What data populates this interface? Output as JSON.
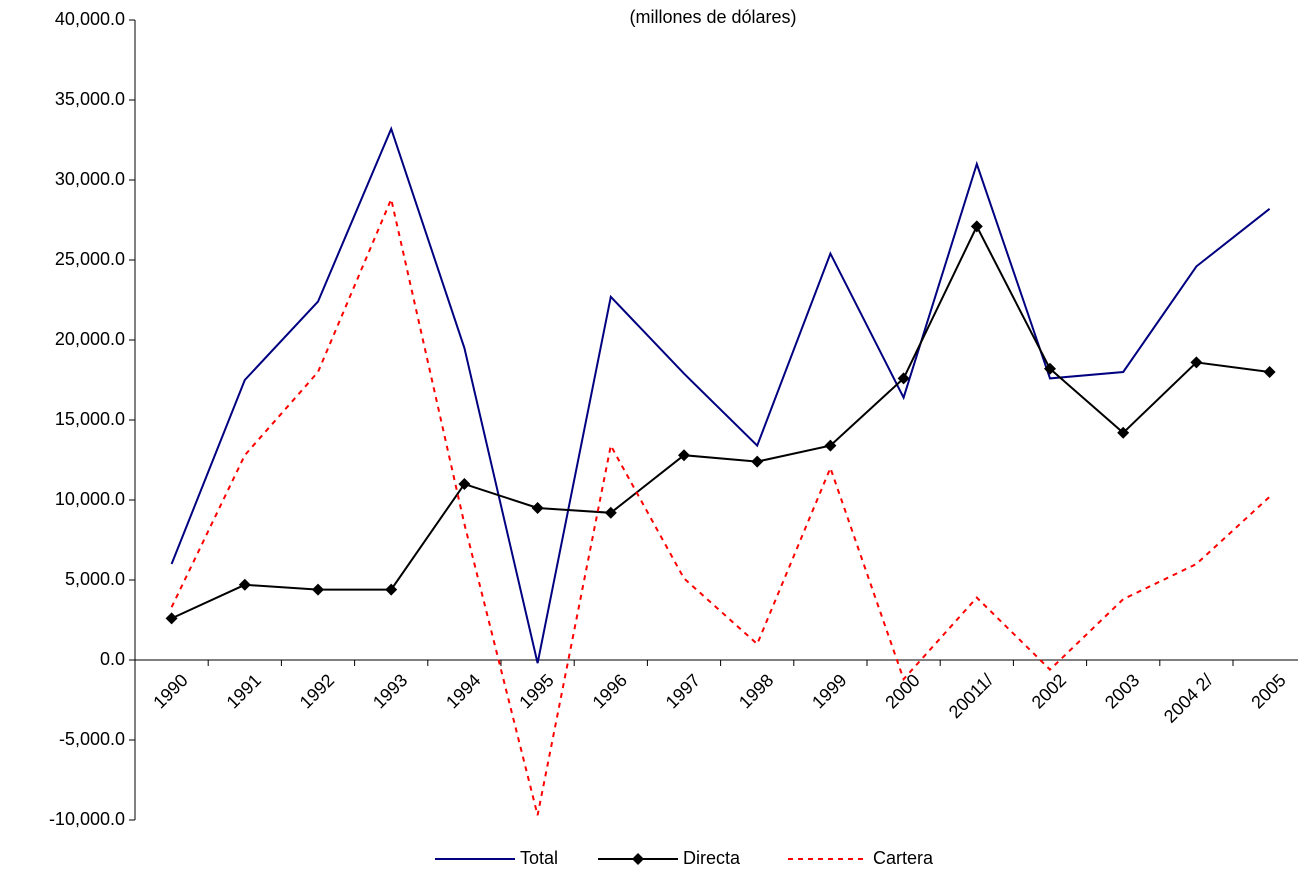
{
  "chart_data": {
    "type": "line",
    "title": "(millones de dólares)",
    "categories": [
      "1990",
      "1991",
      "1992",
      "1993",
      "1994",
      "1995",
      "1996",
      "1997",
      "1998",
      "1999",
      "2000",
      "20011/",
      "2002",
      "2003",
      "2004 2/",
      "2005"
    ],
    "series": [
      {
        "name": "Total",
        "color": "#000080",
        "dash": false,
        "marker": false,
        "values": [
          6000,
          17500,
          22400,
          33200,
          19500,
          -200,
          22700,
          17900,
          13400,
          25400,
          16400,
          31000,
          17600,
          18000,
          24600,
          28200
        ]
      },
      {
        "name": "Directa",
        "color": "#000000",
        "dash": false,
        "marker": true,
        "values": [
          2600,
          4700,
          4400,
          4400,
          11000,
          9500,
          9200,
          12800,
          12400,
          13400,
          17600,
          27100,
          18200,
          14200,
          18600,
          18000
        ]
      },
      {
        "name": "Cartera",
        "color": "#ff0000",
        "dash": true,
        "marker": false,
        "values": [
          3300,
          12800,
          18000,
          28800,
          8500,
          -9700,
          13400,
          5100,
          1000,
          12000,
          -1200,
          3900,
          -600,
          3800,
          6000,
          10200
        ]
      }
    ],
    "ylim": [
      -10000,
      40000
    ],
    "yticks": [
      {
        "value": -10000,
        "label": "-10,000.0"
      },
      {
        "value": -5000,
        "label": "-5,000.0"
      },
      {
        "value": 0,
        "label": "0.0"
      },
      {
        "value": 5000,
        "label": "5,000.0"
      },
      {
        "value": 10000,
        "label": "10,000.0"
      },
      {
        "value": 15000,
        "label": "15,000.0"
      },
      {
        "value": 20000,
        "label": "20,000.0"
      },
      {
        "value": 25000,
        "label": "25,000.0"
      },
      {
        "value": 30000,
        "label": "30,000.0"
      },
      {
        "value": 35000,
        "label": "35,000.0"
      },
      {
        "value": 40000,
        "label": "40,000.0"
      }
    ],
    "grid": false
  }
}
